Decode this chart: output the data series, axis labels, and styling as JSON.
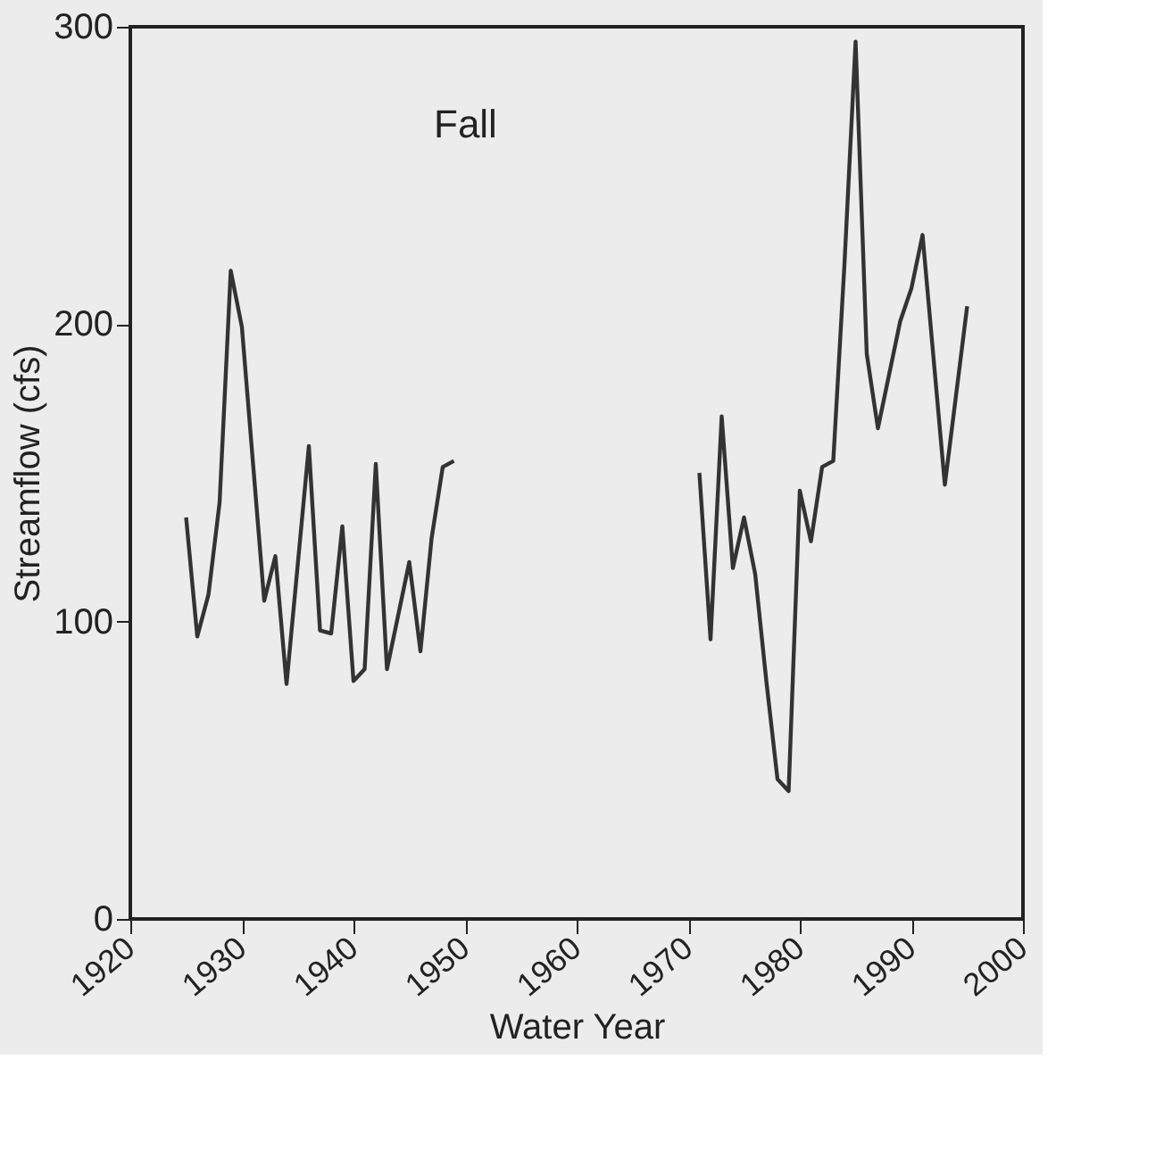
{
  "chart_data": {
    "type": "line",
    "xlabel": "Water Year",
    "ylabel": "Streamflow (cfs)",
    "annotations": [
      "Fall"
    ],
    "x": [
      1925,
      1926,
      1927,
      1928,
      1929,
      1930,
      1931,
      1932,
      1933,
      1934,
      1935,
      1936,
      1937,
      1938,
      1939,
      1940,
      1941,
      1942,
      1943,
      1944,
      1945,
      1946,
      1947,
      1948,
      1949,
      1960,
      1971,
      1972,
      1973,
      1974,
      1975,
      1976,
      1977,
      1978,
      1979,
      1980,
      1981,
      1982,
      1983,
      1984,
      1985,
      1986,
      1987,
      1988,
      1989,
      1990,
      1991,
      1992,
      1993,
      1994,
      1995
    ],
    "series": [
      {
        "color": "#333333",
        "values": [
          135,
          95,
          109,
          140,
          218,
          199,
          153,
          107,
          122,
          79,
          119,
          159,
          97,
          96,
          132,
          80,
          84,
          153,
          84,
          102,
          120,
          90,
          128,
          152,
          154,
          null,
          150,
          94,
          169,
          118,
          135,
          116,
          80,
          47,
          43,
          144,
          127,
          152,
          154,
          220,
          295,
          190,
          165,
          183,
          201,
          212,
          230,
          188,
          146,
          176,
          206
        ]
      }
    ],
    "xlim": [
      1920,
      2000
    ],
    "xticks": [
      1920,
      1930,
      1940,
      1950,
      1960,
      1970,
      1980,
      1990,
      2000
    ],
    "ylim": [
      0,
      300
    ],
    "yticks": [
      0,
      100,
      200,
      300
    ],
    "grid": false,
    "marker": "none",
    "line_style": "solid"
  }
}
